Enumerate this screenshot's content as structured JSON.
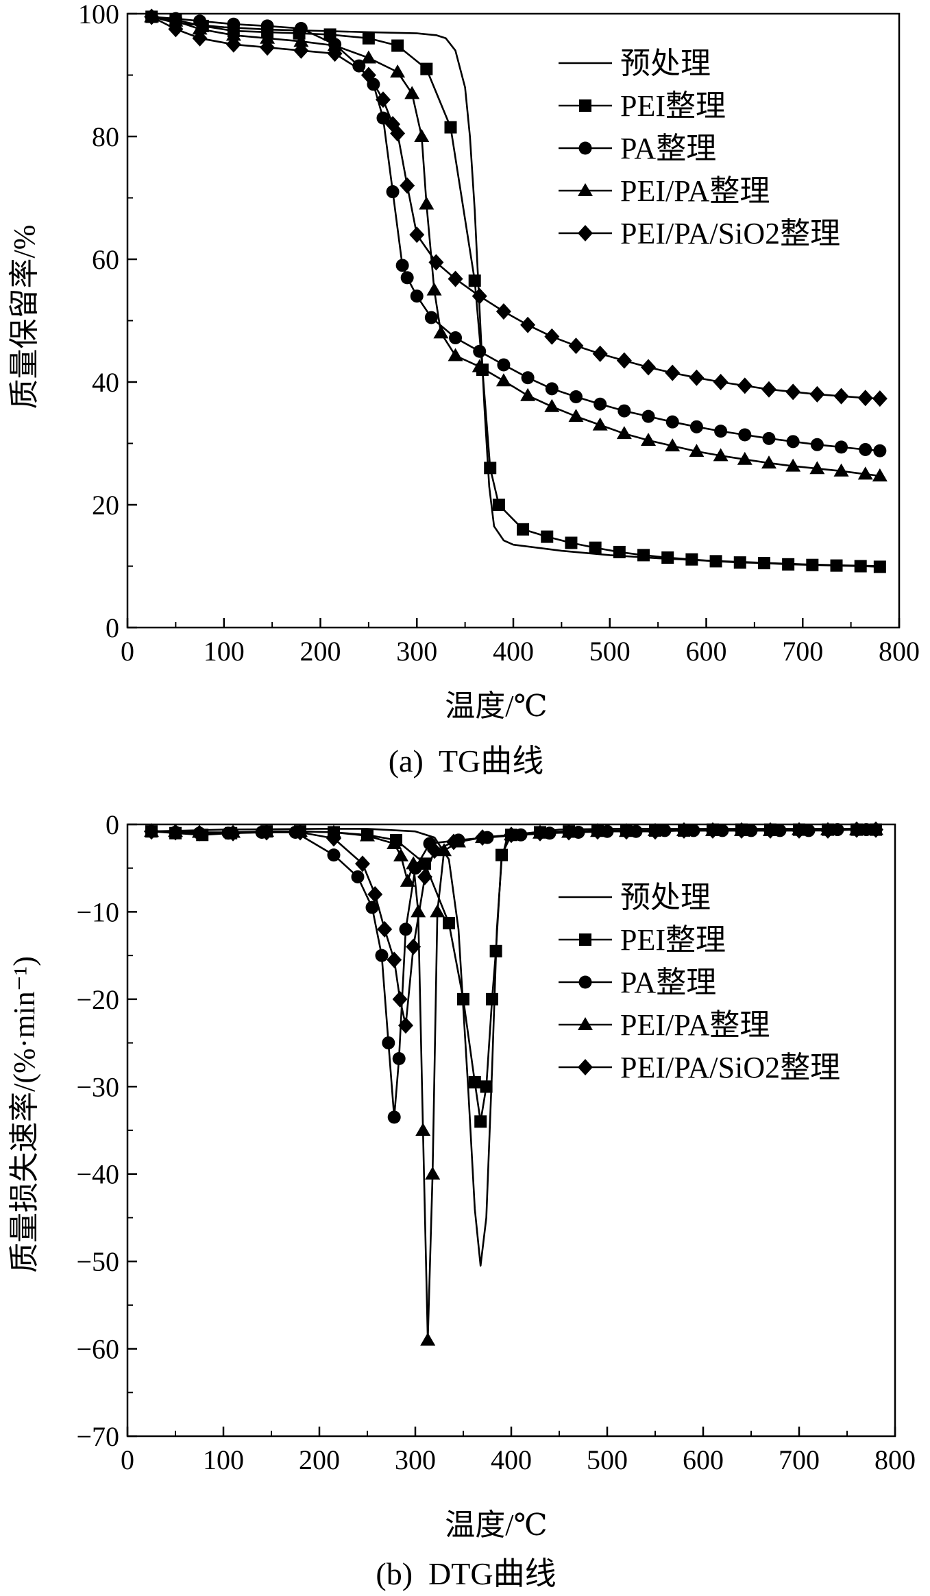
{
  "chart_data": [
    {
      "type": "line",
      "caption": "(a)  TG曲线",
      "xlabel": "温度/℃",
      "ylabel": "质量保留率/%",
      "xlim": [
        0,
        800
      ],
      "ylim": [
        0,
        100
      ],
      "x_ticks": [
        0,
        100,
        200,
        300,
        400,
        500,
        600,
        700,
        800
      ],
      "y_ticks": [
        0,
        20,
        40,
        60,
        80,
        100
      ],
      "grid": false,
      "legend_position": "top-right",
      "series": [
        {
          "name": "预处理",
          "marker": "none",
          "x": [
            25,
            50,
            100,
            150,
            200,
            250,
            300,
            320,
            330,
            340,
            350,
            355,
            360,
            365,
            370,
            375,
            380,
            390,
            400,
            450,
            500,
            550,
            600,
            650,
            700,
            750,
            780
          ],
          "y": [
            99.5,
            98.5,
            97.8,
            97.4,
            97.2,
            97.0,
            96.8,
            96.5,
            96.0,
            94.0,
            88.0,
            80.0,
            68.0,
            52.0,
            36.0,
            23.0,
            16.5,
            14.2,
            13.5,
            12.5,
            11.8,
            11.3,
            10.9,
            10.6,
            10.3,
            10.1,
            10.0
          ]
        },
        {
          "name": "PEI整理",
          "marker": "square",
          "x": [
            25,
            50,
            78,
            110,
            145,
            178,
            210,
            250,
            280,
            310,
            335,
            360,
            368,
            376,
            385,
            410,
            435,
            460,
            485,
            510,
            535,
            560,
            585,
            610,
            635,
            660,
            685,
            710,
            735,
            760,
            780
          ],
          "y": [
            99.5,
            99.0,
            98.0,
            97.2,
            97.0,
            96.8,
            96.6,
            96.0,
            94.8,
            91.0,
            81.5,
            56.5,
            42.0,
            26.0,
            20.0,
            16.0,
            14.8,
            13.8,
            13.0,
            12.3,
            11.8,
            11.4,
            11.1,
            10.8,
            10.6,
            10.5,
            10.3,
            10.2,
            10.1,
            10.0,
            9.9
          ]
        },
        {
          "name": "PA整理",
          "marker": "circle",
          "x": [
            25,
            50,
            75,
            110,
            145,
            180,
            215,
            240,
            255,
            265,
            275,
            285,
            290,
            300,
            315,
            340,
            365,
            390,
            415,
            440,
            465,
            490,
            515,
            540,
            565,
            590,
            615,
            640,
            665,
            690,
            715,
            740,
            765,
            780
          ],
          "y": [
            99.5,
            99.2,
            98.8,
            98.3,
            98.0,
            97.6,
            95.0,
            91.5,
            88.5,
            83.0,
            71.0,
            59.0,
            57.0,
            54.0,
            50.5,
            47.2,
            45.0,
            42.8,
            40.7,
            38.9,
            37.6,
            36.4,
            35.3,
            34.4,
            33.5,
            32.7,
            32.0,
            31.4,
            30.8,
            30.3,
            29.8,
            29.4,
            29.0,
            28.8
          ]
        },
        {
          "name": "PEI/PA整理",
          "marker": "triangle",
          "x": [
            25,
            50,
            75,
            110,
            145,
            180,
            215,
            250,
            280,
            295,
            305,
            310,
            318,
            325,
            340,
            365,
            390,
            415,
            440,
            465,
            490,
            515,
            540,
            565,
            590,
            615,
            640,
            665,
            690,
            715,
            740,
            765,
            780
          ],
          "y": [
            99.5,
            98.8,
            97.5,
            96.5,
            96.0,
            95.5,
            94.8,
            92.8,
            90.5,
            87.0,
            80.0,
            69.0,
            55.0,
            48.0,
            44.3,
            42.5,
            40.2,
            37.8,
            36.0,
            34.4,
            33.0,
            31.6,
            30.5,
            29.6,
            28.7,
            28.0,
            27.4,
            26.8,
            26.3,
            25.9,
            25.5,
            25.0,
            24.7
          ]
        },
        {
          "name": "PEI/PA/SiO2整理",
          "marker": "diamond",
          "x": [
            25,
            50,
            75,
            110,
            145,
            180,
            215,
            250,
            265,
            275,
            280,
            290,
            300,
            320,
            340,
            365,
            390,
            415,
            440,
            465,
            490,
            515,
            540,
            565,
            590,
            615,
            640,
            665,
            690,
            715,
            740,
            765,
            780
          ],
          "y": [
            99.5,
            97.5,
            96.0,
            95.0,
            94.5,
            94.0,
            93.5,
            90.0,
            86.0,
            82.0,
            80.5,
            72.0,
            64.0,
            59.5,
            56.8,
            54.0,
            51.5,
            49.3,
            47.4,
            45.9,
            44.6,
            43.5,
            42.4,
            41.5,
            40.7,
            40.0,
            39.4,
            38.8,
            38.4,
            38.0,
            37.7,
            37.4,
            37.3
          ]
        }
      ]
    },
    {
      "type": "line",
      "caption": "(b)  DTG曲线",
      "xlabel": "温度/℃",
      "ylabel": "质量损失速率/(%·min⁻¹)",
      "xlim": [
        0,
        800
      ],
      "ylim": [
        -70,
        0
      ],
      "x_ticks": [
        0,
        100,
        200,
        300,
        400,
        500,
        600,
        700,
        800
      ],
      "y_ticks": [
        0,
        -10,
        -20,
        -30,
        -40,
        -50,
        -60,
        -70
      ],
      "grid": false,
      "legend_position": "center-right",
      "series": [
        {
          "name": "预处理",
          "marker": "none",
          "x": [
            25,
            100,
            200,
            250,
            300,
            320,
            335,
            345,
            355,
            362,
            368,
            374,
            380,
            385,
            390,
            395,
            400,
            450,
            500,
            600,
            700,
            780
          ],
          "y": [
            -0.8,
            -0.6,
            -0.5,
            -0.5,
            -0.8,
            -1.5,
            -4.0,
            -12.0,
            -30.0,
            -44.0,
            -50.5,
            -45.0,
            -28.0,
            -12.0,
            -4.0,
            -1.8,
            -1.2,
            -0.6,
            -0.5,
            -0.5,
            -0.5,
            -0.5
          ]
        },
        {
          "name": "PEI整理",
          "marker": "square",
          "x": [
            25,
            50,
            78,
            108,
            145,
            180,
            215,
            250,
            280,
            310,
            335,
            350,
            362,
            368,
            374,
            380,
            384,
            390,
            400,
            430,
            460,
            490,
            520,
            550,
            580,
            610,
            640,
            670,
            700,
            730,
            760,
            780
          ],
          "y": [
            -0.8,
            -1.0,
            -1.2,
            -1.0,
            -0.8,
            -0.8,
            -0.9,
            -1.2,
            -1.8,
            -4.5,
            -11.3,
            -20.0,
            -29.5,
            -34.0,
            -30.0,
            -20.0,
            -14.5,
            -3.5,
            -1.2,
            -0.9,
            -0.8,
            -0.7,
            -0.7,
            -0.7,
            -0.7,
            -0.6,
            -0.6,
            -0.6,
            -0.6,
            -0.6,
            -0.6,
            -0.6
          ]
        },
        {
          "name": "PA整理",
          "marker": "circle",
          "x": [
            25,
            50,
            75,
            105,
            140,
            175,
            215,
            240,
            255,
            265,
            272,
            278,
            283,
            290,
            300,
            315,
            345,
            375,
            410,
            440,
            470,
            500,
            530,
            560,
            590,
            620,
            650,
            680,
            710,
            740,
            770,
            780
          ],
          "y": [
            -0.8,
            -0.9,
            -1.0,
            -1.0,
            -0.9,
            -0.9,
            -3.5,
            -6.0,
            -9.5,
            -15.0,
            -25.0,
            -33.5,
            -26.8,
            -12.0,
            -5.0,
            -2.2,
            -1.8,
            -1.5,
            -1.2,
            -1.0,
            -0.9,
            -0.8,
            -0.8,
            -0.7,
            -0.7,
            -0.7,
            -0.7,
            -0.7,
            -0.7,
            -0.6,
            -0.6,
            -0.6
          ]
        },
        {
          "name": "PEI/PA整理",
          "marker": "triangle",
          "x": [
            25,
            50,
            75,
            110,
            145,
            180,
            215,
            250,
            278,
            285,
            292,
            298,
            303,
            308,
            313,
            318,
            323,
            330,
            345,
            370,
            400,
            430,
            460,
            490,
            520,
            550,
            580,
            610,
            640,
            670,
            700,
            730,
            760,
            780
          ],
          "y": [
            -0.8,
            -0.8,
            -0.9,
            -0.9,
            -0.8,
            -0.8,
            -0.9,
            -1.3,
            -2.2,
            -3.6,
            -6.5,
            -4.5,
            -10.0,
            -35.0,
            -59.0,
            -40.0,
            -10.0,
            -3.0,
            -2.0,
            -1.5,
            -1.2,
            -1.0,
            -0.9,
            -0.8,
            -0.8,
            -0.7,
            -0.7,
            -0.7,
            -0.7,
            -0.7,
            -0.6,
            -0.6,
            -0.6,
            -0.6
          ]
        },
        {
          "name": "PEI/PA/SiO2整理",
          "marker": "diamond",
          "x": [
            25,
            50,
            75,
            110,
            145,
            180,
            215,
            245,
            258,
            268,
            278,
            284,
            290,
            298,
            310,
            320,
            340,
            370,
            400,
            430,
            460,
            490,
            520,
            550,
            580,
            610,
            640,
            670,
            700,
            730,
            760,
            780
          ],
          "y": [
            -0.8,
            -0.9,
            -1.0,
            -1.0,
            -0.9,
            -0.9,
            -1.6,
            -4.5,
            -8.0,
            -12.0,
            -15.5,
            -20.0,
            -23.0,
            -14.0,
            -6.0,
            -3.0,
            -2.0,
            -1.5,
            -1.2,
            -1.0,
            -0.9,
            -0.8,
            -0.8,
            -0.8,
            -0.7,
            -0.7,
            -0.7,
            -0.7,
            -0.7,
            -0.7,
            -0.6,
            -0.6
          ]
        }
      ]
    }
  ]
}
